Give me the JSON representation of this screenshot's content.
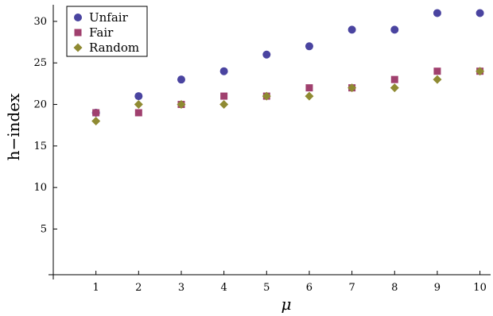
{
  "chart_data": {
    "type": "scatter",
    "title": "",
    "xlabel": "μ",
    "ylabel": "h−index",
    "xlim": [
      0,
      10.25
    ],
    "ylim": [
      -0.5,
      32
    ],
    "xticks": [
      1,
      2,
      3,
      4,
      5,
      6,
      7,
      8,
      9,
      10
    ],
    "yticks": [
      5,
      10,
      15,
      20,
      25,
      30
    ],
    "x": [
      1,
      2,
      3,
      4,
      5,
      6,
      7,
      8,
      9,
      10
    ],
    "grid": false,
    "legend_position": "top-left",
    "series": [
      {
        "name": "Unfair",
        "marker": "circle",
        "color": "#4a44a0",
        "values": [
          19,
          21,
          23,
          24,
          26,
          27,
          29,
          29,
          31,
          31
        ]
      },
      {
        "name": "Fair",
        "marker": "square",
        "color": "#a0406e",
        "values": [
          19,
          19,
          20,
          21,
          21,
          22,
          22,
          23,
          24,
          24
        ]
      },
      {
        "name": "Random",
        "marker": "diamond",
        "color": "#8f8a32",
        "values": [
          18,
          20,
          20,
          20,
          21,
          21,
          22,
          22,
          23,
          24
        ]
      }
    ]
  }
}
